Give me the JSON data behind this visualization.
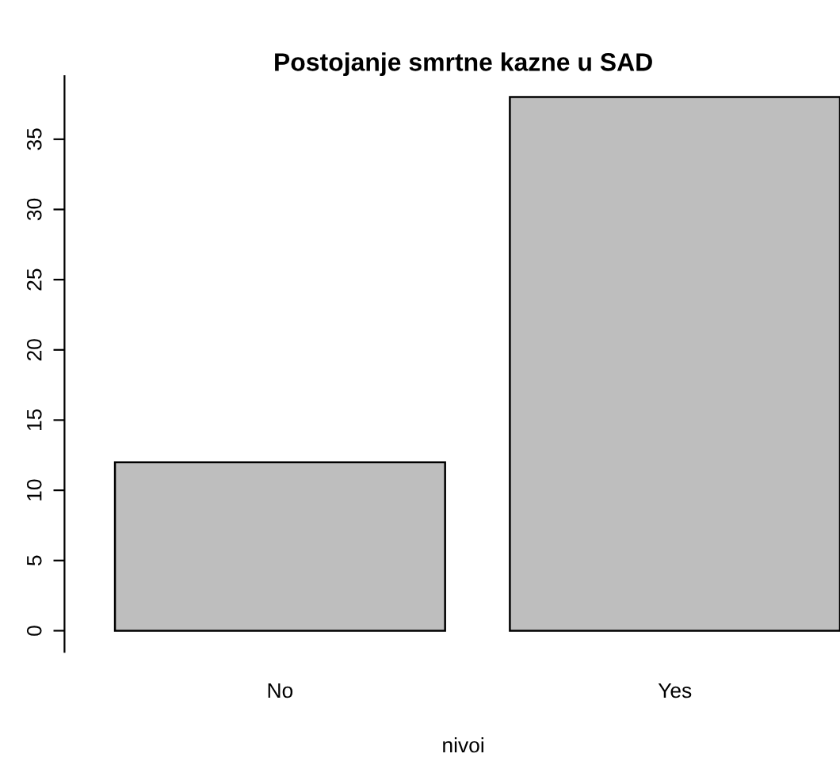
{
  "chart_data": {
    "type": "bar",
    "title": "Postojanje smrtne kazne u SAD",
    "xlabel": "nivoi",
    "categories": [
      "No",
      "Yes"
    ],
    "values": [
      12,
      38
    ],
    "color": "#bebebe",
    "ylim": [
      -1.5,
      39.5
    ],
    "yticks": [
      0,
      5,
      10,
      15,
      20,
      25,
      30,
      35
    ],
    "grid": false
  }
}
